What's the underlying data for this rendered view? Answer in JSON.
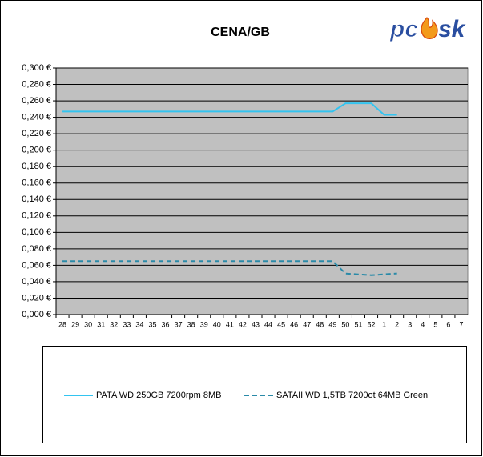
{
  "chart_data": {
    "type": "line",
    "title": "CENA/GB",
    "logo": [
      "pc",
      "sk"
    ],
    "categories": [
      "28",
      "29",
      "30",
      "31",
      "32",
      "33",
      "34",
      "35",
      "36",
      "37",
      "38",
      "39",
      "40",
      "41",
      "42",
      "43",
      "44",
      "45",
      "46",
      "47",
      "48",
      "49",
      "50",
      "51",
      "52",
      "1",
      "2",
      "3",
      "4",
      "5",
      "6",
      "7"
    ],
    "series": [
      {
        "name": "PATA WD 250GB 7200rpm 8MB",
        "color": "#33c4f0",
        "dash": false,
        "values": [
          0.247,
          0.247,
          0.247,
          0.247,
          0.247,
          0.247,
          0.247,
          0.247,
          0.247,
          0.247,
          0.247,
          0.247,
          0.247,
          0.247,
          0.247,
          0.247,
          0.247,
          0.247,
          0.247,
          0.247,
          0.247,
          0.247,
          0.257,
          0.257,
          0.257,
          0.243,
          0.243,
          null,
          null,
          null,
          null,
          null
        ]
      },
      {
        "name": "SATAII WD 1,5TB 7200ot 64MB Green",
        "color": "#2a8aa8",
        "dash": true,
        "values": [
          0.065,
          0.065,
          0.065,
          0.065,
          0.065,
          0.065,
          0.065,
          0.065,
          0.065,
          0.065,
          0.065,
          0.065,
          0.065,
          0.065,
          0.065,
          0.065,
          0.065,
          0.065,
          0.065,
          0.065,
          0.065,
          0.065,
          0.05,
          0.049,
          0.048,
          0.049,
          0.05,
          null,
          null,
          null,
          null,
          null
        ]
      }
    ],
    "ylim": [
      0,
      0.3
    ],
    "yticks": [
      {
        "value": 0,
        "label": "0,000 €"
      },
      {
        "value": 0.02,
        "label": "0,020 €"
      },
      {
        "value": 0.04,
        "label": "0,040 €"
      },
      {
        "value": 0.06,
        "label": "0,060 €"
      },
      {
        "value": 0.08,
        "label": "0,080 €"
      },
      {
        "value": 0.1,
        "label": "0,100 €"
      },
      {
        "value": 0.12,
        "label": "0,120 €"
      },
      {
        "value": 0.14,
        "label": "0,140 €"
      },
      {
        "value": 0.16,
        "label": "0,160 €"
      },
      {
        "value": 0.18,
        "label": "0,180 €"
      },
      {
        "value": 0.2,
        "label": "0,200 €"
      },
      {
        "value": 0.22,
        "label": "0,220 €"
      },
      {
        "value": 0.24,
        "label": "0,240 €"
      },
      {
        "value": 0.26,
        "label": "0,260 €"
      },
      {
        "value": 0.28,
        "label": "0,280 €"
      },
      {
        "value": 0.3,
        "label": "0,300 €"
      }
    ],
    "grid": true,
    "plot_color": "#c0c0c0"
  }
}
